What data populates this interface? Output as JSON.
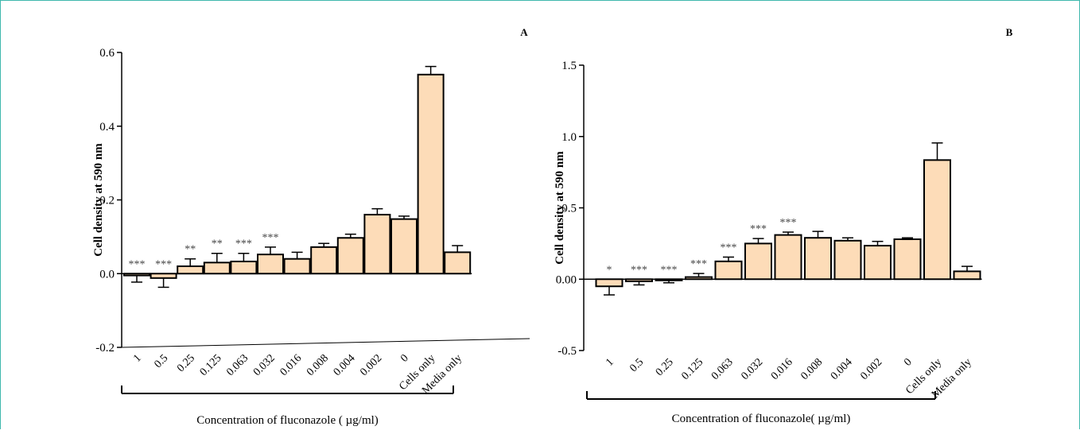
{
  "accent_color": "#3fb8ad",
  "bar_fill": "#fddcb8",
  "chart_data": [
    {
      "panel_label": "A",
      "type": "bar",
      "ylabel": "Cell density at 590 nm",
      "xlabel": "Concentration of fluconazole ( µg/ml)",
      "ylim": [
        -0.2,
        0.6
      ],
      "yticks": [
        -0.2,
        0.0,
        0.2,
        0.4,
        0.6
      ],
      "ytick_labels": [
        "-0.2",
        "0.0",
        "0.2",
        "0.4",
        "0.6"
      ],
      "categories": [
        "1",
        "0.5",
        "0.25",
        "0.125",
        "0.063",
        "0.032",
        "0.016",
        "0.008",
        "0.004",
        "0.002",
        "0",
        "Cells only",
        "Media only"
      ],
      "values": [
        -0.005,
        -0.012,
        0.02,
        0.03,
        0.033,
        0.052,
        0.04,
        0.072,
        0.097,
        0.16,
        0.148,
        0.54,
        0.058
      ],
      "errors": [
        0.018,
        0.025,
        0.02,
        0.025,
        0.022,
        0.02,
        0.018,
        0.01,
        0.01,
        0.016,
        0.008,
        0.022,
        0.018
      ],
      "significance": [
        "***",
        "***",
        "**",
        "**",
        "***",
        "***",
        "",
        "",
        "",
        "",
        "",
        "",
        ""
      ]
    },
    {
      "panel_label": "B",
      "type": "bar",
      "ylabel": "Cell density at 590 nm",
      "xlabel": "Concentration of fluconazole( µg/ml)",
      "ylim": [
        -0.5,
        1.5
      ],
      "yticks": [
        -0.5,
        0.0,
        0.5,
        1.0,
        1.5
      ],
      "ytick_labels": [
        "-0.5",
        "0.00",
        "0.5",
        "1.0",
        "1.5"
      ],
      "categories": [
        "1",
        "0.5",
        "0.25",
        "0.125",
        "0.063",
        "0.032",
        "0.016",
        "0.008",
        "0.004",
        "0.002",
        "0",
        "Cells only",
        "Media only"
      ],
      "values": [
        -0.05,
        -0.015,
        -0.005,
        0.015,
        0.125,
        0.25,
        0.31,
        0.29,
        0.27,
        0.235,
        0.28,
        0.835,
        0.055
      ],
      "errors": [
        0.06,
        0.025,
        0.02,
        0.025,
        0.03,
        0.035,
        0.02,
        0.045,
        0.02,
        0.03,
        0.01,
        0.12,
        0.035
      ],
      "significance": [
        "*",
        "***",
        "***",
        "***",
        "***",
        "***",
        "***",
        "",
        "",
        "",
        "",
        "",
        ""
      ]
    }
  ]
}
